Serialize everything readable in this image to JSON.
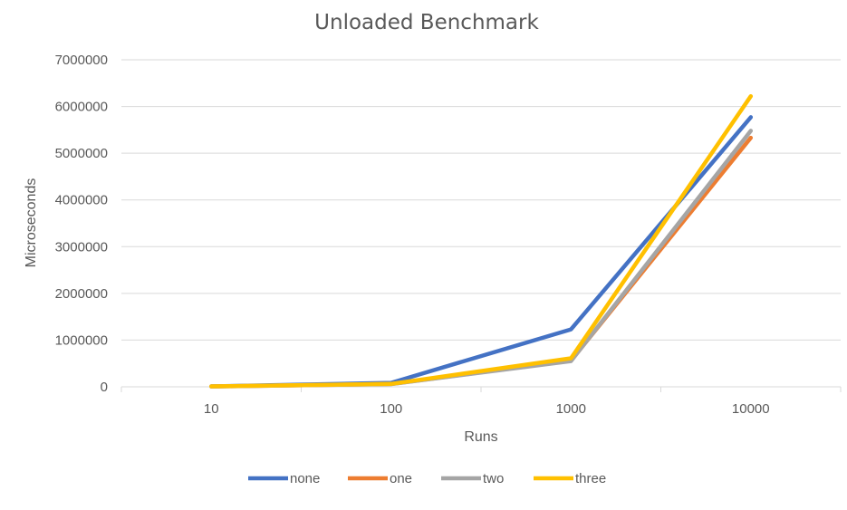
{
  "chart_data": {
    "type": "line",
    "title": "Unloaded Benchmark",
    "xlabel": "Runs",
    "ylabel": "Microseconds",
    "categories": [
      "10",
      "100",
      "1000",
      "10000"
    ],
    "ylim": [
      0,
      7000000
    ],
    "yticks": [
      "0",
      "1000000",
      "2000000",
      "3000000",
      "4000000",
      "5000000",
      "6000000",
      "7000000"
    ],
    "grid": true,
    "legend": "bottom",
    "series": [
      {
        "name": "none",
        "color": "#4472C4",
        "values": [
          10000,
          85000,
          1230000,
          5770000
        ]
      },
      {
        "name": "one",
        "color": "#ED7D31",
        "values": [
          8000,
          60000,
          560000,
          5330000
        ]
      },
      {
        "name": "two",
        "color": "#A5A5A5",
        "values": [
          8000,
          58000,
          550000,
          5480000
        ]
      },
      {
        "name": "three",
        "color": "#FFC000",
        "values": [
          9000,
          62000,
          610000,
          6220000
        ]
      }
    ]
  }
}
